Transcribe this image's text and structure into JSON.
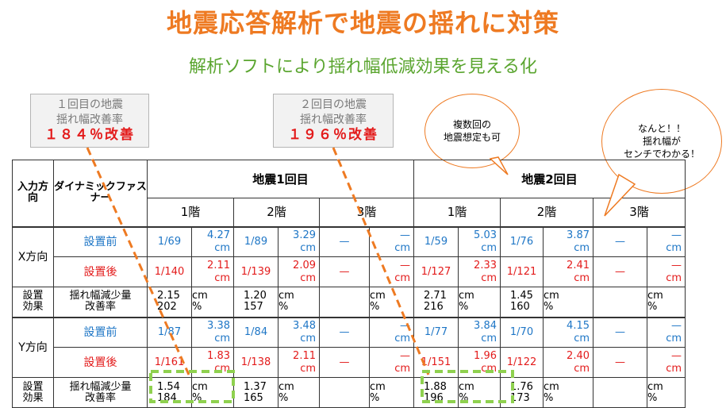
{
  "title": "地震応答解析で地震の揺れに対策",
  "subtitle": "解析ソフトにより揺れ幅低減効果を見える化",
  "callout1": {
    "line1": "１回目の地震",
    "line2": "揺れ幅改善率",
    "value": "１８４％改善"
  },
  "callout2": {
    "line1": "２回目の地震",
    "line2": "揺れ幅改善率",
    "value": "１９６％改善"
  },
  "bubble1": {
    "line1": "複数回の",
    "line2": "地震想定も可"
  },
  "bubble2": {
    "line1": "なんと！！",
    "line2": "揺れ幅が",
    "line3": "センチでわかる！"
  },
  "colors": {
    "title": "#ee7a22",
    "subtitle": "#5aa52f",
    "before": "#1e76c6",
    "after": "#e31b1b",
    "highlight": "#8fd14f"
  },
  "table": {
    "dir_header": "入力方向",
    "product_header": "ダイナミックファスナー",
    "eq1": "地震1回目",
    "eq2": "地震2回目",
    "floors": [
      "1階",
      "2階",
      "3階",
      "1階",
      "2階",
      "3階"
    ],
    "x_dir": "X方向",
    "y_dir": "Y方向",
    "before": "設置前",
    "after": "設置後",
    "effect1": "設置",
    "effect2": "効果",
    "reduction": "揺れ幅減少量",
    "rate": "改善率",
    "dash": "—",
    "unit_cm": "cm",
    "unit_pct": "%",
    "x_before": [
      {
        "frac": "1/69",
        "cm": "4.27"
      },
      {
        "frac": "1/89",
        "cm": "3.29"
      },
      {
        "frac": "—",
        "cm": "—"
      },
      {
        "frac": "1/59",
        "cm": "5.03"
      },
      {
        "frac": "1/76",
        "cm": "3.87"
      },
      {
        "frac": "—",
        "cm": "—"
      }
    ],
    "x_after": [
      {
        "frac": "1/140",
        "cm": "2.11"
      },
      {
        "frac": "1/139",
        "cm": "2.09"
      },
      {
        "frac": "—",
        "cm": "—"
      },
      {
        "frac": "1/127",
        "cm": "2.33"
      },
      {
        "frac": "1/121",
        "cm": "2.41"
      },
      {
        "frac": "—",
        "cm": "—"
      }
    ],
    "x_red": [
      "2.15",
      "1.20",
      "",
      "2.71",
      "1.45",
      ""
    ],
    "x_rate": [
      "202",
      "157",
      "",
      "216",
      "160",
      ""
    ],
    "y_before": [
      {
        "frac": "1/87",
        "cm": "3.38"
      },
      {
        "frac": "1/84",
        "cm": "3.48"
      },
      {
        "frac": "—",
        "cm": "—"
      },
      {
        "frac": "1/77",
        "cm": "3.84"
      },
      {
        "frac": "1/70",
        "cm": "4.15"
      },
      {
        "frac": "—",
        "cm": "—"
      }
    ],
    "y_after": [
      {
        "frac": "1/161",
        "cm": "1.83"
      },
      {
        "frac": "1/138",
        "cm": "2.11"
      },
      {
        "frac": "—",
        "cm": "—"
      },
      {
        "frac": "1/151",
        "cm": "1.96"
      },
      {
        "frac": "1/122",
        "cm": "2.40"
      },
      {
        "frac": "—",
        "cm": "—"
      }
    ],
    "y_red": [
      "1.54",
      "1.37",
      "",
      "1.88",
      "1.76",
      ""
    ],
    "y_rate": [
      "184",
      "165",
      "",
      "196",
      "173",
      ""
    ]
  }
}
